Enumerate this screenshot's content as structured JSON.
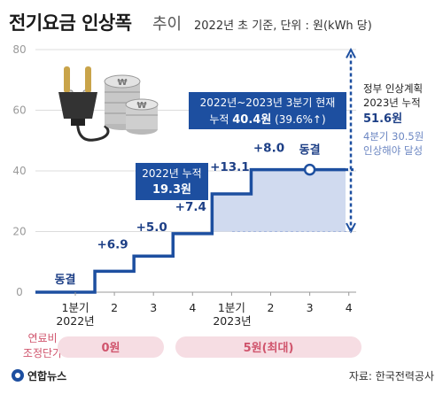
{
  "header": {
    "title": "전기요금 인상폭",
    "subtitle": "추이",
    "meta": "2022년 초 기준, 단위 : 원(kWh 당)"
  },
  "chart_data": {
    "type": "line",
    "title": "전기요금 인상폭 추이",
    "unit_note": "2022년 초 기준, 단위 : 원(kWh 당)",
    "ylim": [
      0,
      80
    ],
    "yticks": [
      0,
      20,
      40,
      60,
      80
    ],
    "x": [
      "1분기",
      "2",
      "3",
      "4",
      "1분기",
      "2",
      "3",
      "4"
    ],
    "year_labels": [
      "2022년",
      "2023년"
    ],
    "series": [
      {
        "values": [
          0,
          6.9,
          11.9,
          19.3,
          32.4,
          40.4,
          40.4,
          40.4
        ]
      }
    ],
    "step_labels": [
      "동결",
      "+6.9",
      "+5.0",
      "+7.4",
      "+13.1",
      "+8.0",
      "동결"
    ],
    "annotations": {
      "cum2022": {
        "line1": "2022년 누적",
        "line2": "19.3원"
      },
      "cum2023": {
        "line1": "2022년~2023년 3분기 현재",
        "line2a": "누적 ",
        "line2b": "40.4원",
        "line2c": " (39.6%↑)"
      },
      "plan": {
        "line1": "정부 인상계획",
        "line2": "2023년 누적",
        "value": "51.6원",
        "note1": "4분기 30.5원",
        "note2": "인상해야 달성"
      }
    },
    "fuel_adjustment": {
      "label1": "연료비",
      "label2": "조정단가",
      "v2022": "0원",
      "v2023": "5원(최대)"
    },
    "grid": true
  },
  "footer": {
    "logo": "연합뉴스",
    "source": "자료: 한국전력공사"
  },
  "colors": {
    "line": "#1d4fa0",
    "fill": "#c8d3ec",
    "box": "#1d4fa0",
    "fuel_bg": "#f6dde3",
    "fuel_text": "#d0556d"
  }
}
